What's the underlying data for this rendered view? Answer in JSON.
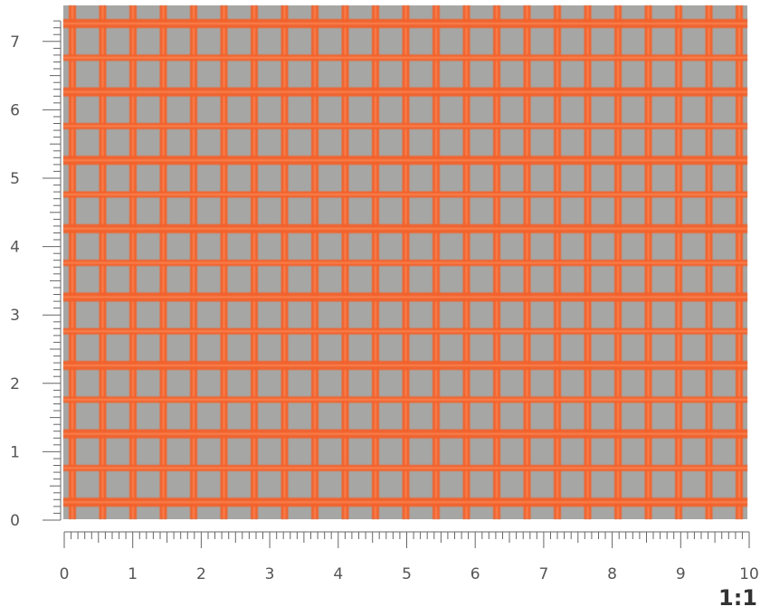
{
  "photo": {
    "subject": "orange mesh netting",
    "mesh_color": "#f2612b",
    "background_color": "#a6a6a4"
  },
  "x_ruler": {
    "min": 0,
    "max": 10,
    "labels": [
      "0",
      "1",
      "2",
      "3",
      "4",
      "5",
      "6",
      "7",
      "8",
      "9",
      "10"
    ],
    "minor_ticks_per_unit": 10
  },
  "y_ruler": {
    "min": 0,
    "max": 7.3,
    "labels": [
      "0",
      "1",
      "2",
      "3",
      "4",
      "5",
      "6",
      "7"
    ],
    "minor_ticks_per_unit": 10
  },
  "scale_label": "1:1"
}
